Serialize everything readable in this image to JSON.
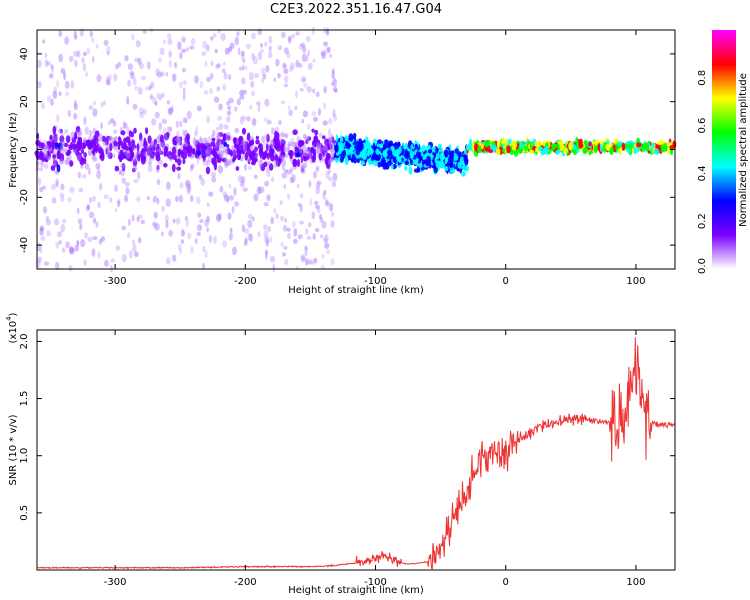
{
  "figure": {
    "title": "C2E3.2022.351.16.47.G04"
  },
  "chart_data": [
    {
      "type": "heatmap",
      "xlabel": "Height of straight line (km)",
      "ylabel": "Frequency (Hz)",
      "xlim": [
        -360,
        130
      ],
      "ylim": [
        -50,
        50
      ],
      "x_ticks": [
        -300,
        -200,
        -100,
        0,
        100
      ],
      "y_ticks": [
        -40,
        -20,
        0,
        20,
        40
      ],
      "colorbar": {
        "label": "Normalized spectral amplitude",
        "range": [
          0,
          1
        ],
        "ticks": [
          "0.0",
          "0.2",
          "0.4",
          "0.6",
          "0.8"
        ],
        "colormap": [
          "#ffffff",
          "#7a00ff",
          "#0000ff",
          "#00ffff",
          "#00ff00",
          "#ffff00",
          "#ff0000",
          "#ff00ff"
        ]
      },
      "features": [
        {
          "x_range": [
            -360,
            -130
          ],
          "freq_center": 0,
          "freq_halfwidth": 10,
          "amplitude": 0.12,
          "noise_spread": 50
        },
        {
          "x_range": [
            -130,
            -30
          ],
          "freq_center": 0,
          "freq_halfwidth": 7,
          "amplitude": 0.35,
          "drift_to": -5
        },
        {
          "x_range": [
            -30,
            130
          ],
          "freq_center": 1,
          "freq_halfwidth": 3,
          "amplitude": 0.7
        }
      ]
    },
    {
      "type": "line",
      "xlabel": "Height of straight line (km)",
      "ylabel": "SNR (10 * v/v)",
      "y_multiplier": "(x10",
      "y_multiplier_exp": "4",
      "xlim": [
        -360,
        130
      ],
      "ylim": [
        0,
        2.1
      ],
      "x_ticks": [
        -300,
        -200,
        -100,
        0,
        100
      ],
      "y_ticks": [
        0.5,
        1.0,
        1.5,
        2.0
      ],
      "series": [
        {
          "color": "#ee3333",
          "x": [
            -360,
            -300,
            -250,
            -200,
            -150,
            -130,
            -110,
            -100,
            -95,
            -85,
            -75,
            -60,
            -50,
            -40,
            -30,
            -20,
            -10,
            0,
            10,
            20,
            30,
            40,
            50,
            60,
            70,
            80,
            90,
            95,
            100,
            105,
            110,
            120,
            130
          ],
          "y": [
            0.02,
            0.02,
            0.02,
            0.03,
            0.03,
            0.04,
            0.07,
            0.1,
            0.14,
            0.08,
            0.05,
            0.07,
            0.15,
            0.45,
            0.7,
            0.95,
            1.05,
            1.0,
            1.15,
            1.22,
            1.27,
            1.3,
            1.32,
            1.33,
            1.3,
            1.3,
            1.28,
            1.5,
            1.8,
            1.5,
            1.28,
            1.28,
            1.27
          ]
        }
      ]
    }
  ]
}
